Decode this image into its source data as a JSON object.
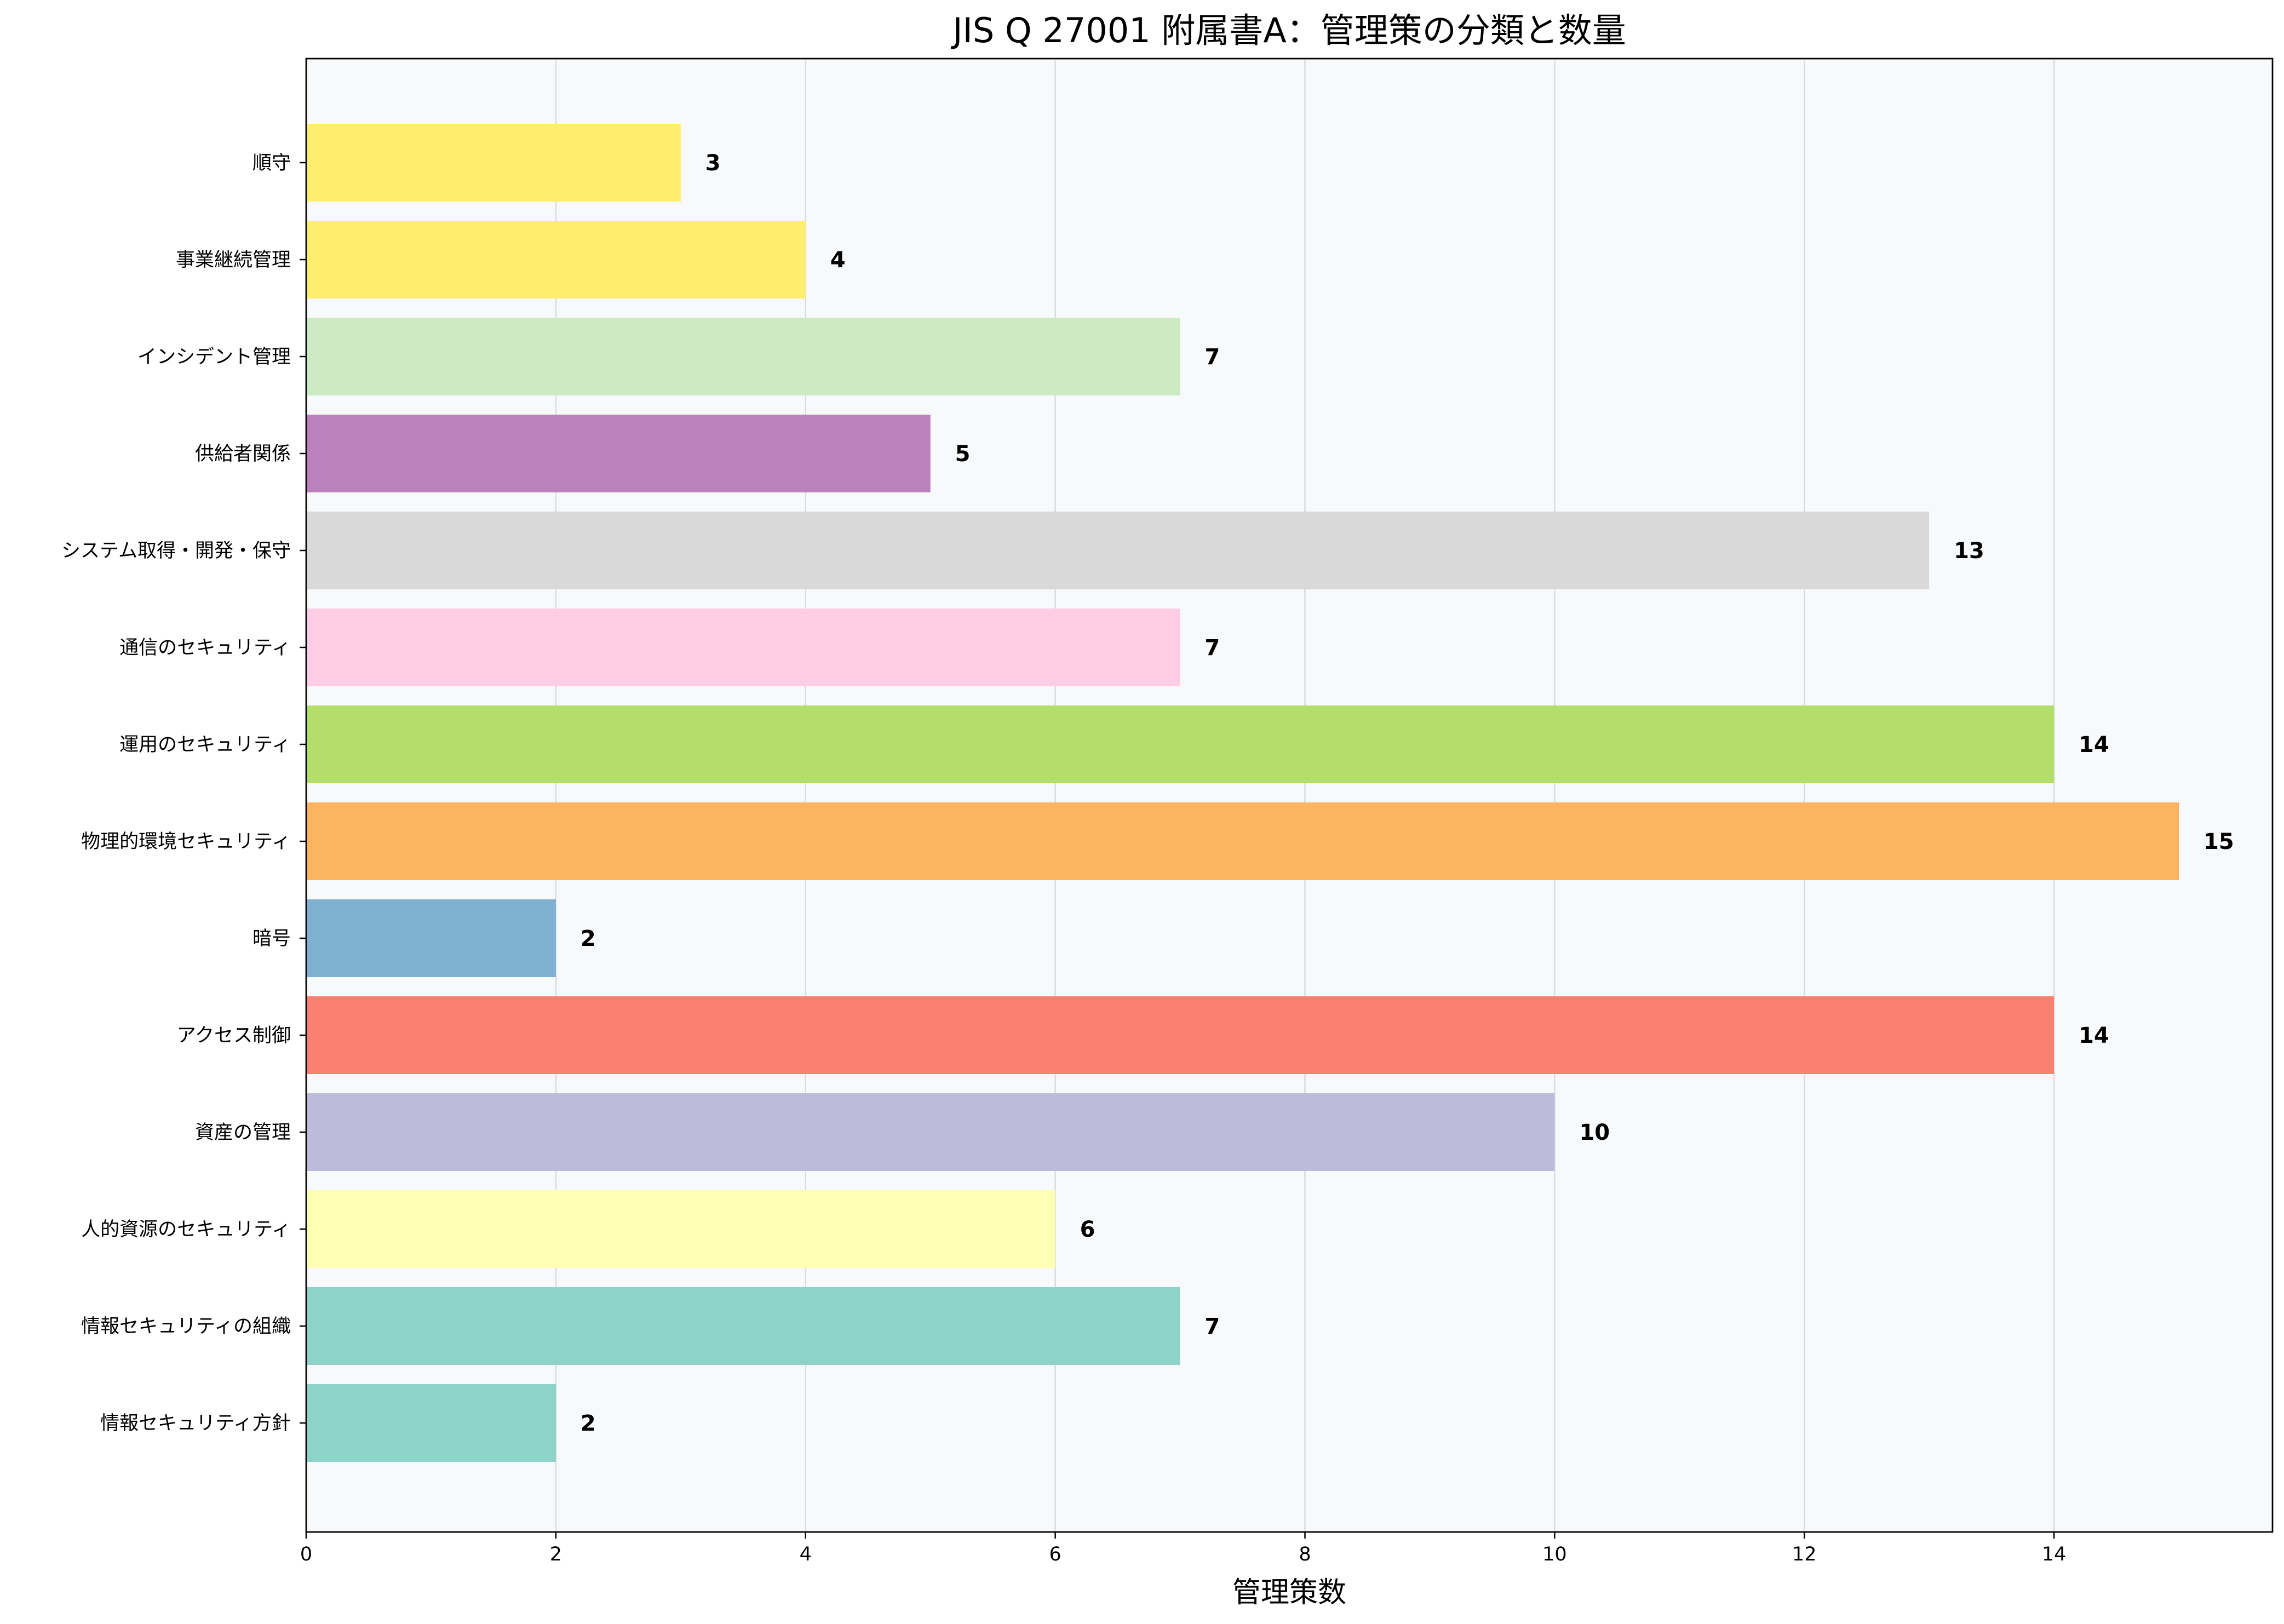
{
  "chart_data": {
    "type": "bar",
    "orientation": "horizontal",
    "title": "JIS Q 27001 附属書A：管理策の分類と数量",
    "xlabel": "管理策数",
    "ylabel": "",
    "xlim": [
      0,
      15.75
    ],
    "xticks": [
      0,
      2,
      4,
      6,
      8,
      10,
      12,
      14
    ],
    "grid": "x",
    "categories": [
      "情報セキュリティ方針",
      "情報セキュリティの組織",
      "人的資源のセキュリティ",
      "資産の管理",
      "アクセス制御",
      "暗号",
      "物理的環境セキュリティ",
      "運用のセキュリティ",
      "通信のセキュリティ",
      "システム取得・開発・保守",
      "供給者関係",
      "インシデント管理",
      "事業継続管理",
      "順守"
    ],
    "values": [
      2,
      7,
      6,
      10,
      14,
      2,
      15,
      14,
      7,
      13,
      5,
      7,
      4,
      3
    ],
    "colors": [
      "#8dd3c7",
      "#8dd3c7",
      "#ffffb3",
      "#bebada",
      "#fb8072",
      "#80b1d3",
      "#fdb462",
      "#b3de69",
      "#fccde5",
      "#d9d9d9",
      "#bc80bd",
      "#ccebc5",
      "#ffed6f",
      "#ffed6f"
    ]
  }
}
